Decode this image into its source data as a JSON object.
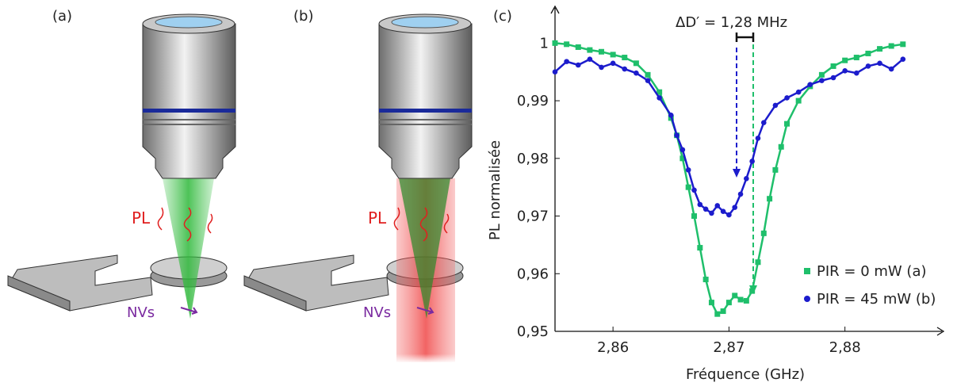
{
  "panels": [
    {
      "label": "(a)",
      "pl": "PL",
      "nv": "NVs"
    },
    {
      "label": "(b)",
      "pl": "PL",
      "nv": "NVs"
    }
  ],
  "chart_data": {
    "type": "scatter",
    "panel_label": "(c)",
    "annotation": "ΔD′ = 1,28 MHz",
    "x_label": "Fréquence (GHz)",
    "y_label": "PL normalisée",
    "xlim": [
      2.855,
      2.8885
    ],
    "ylim": [
      0.95,
      1.005
    ],
    "xticks": [
      {
        "value": 2.86,
        "label": "2,86"
      },
      {
        "value": 2.87,
        "label": "2,87"
      },
      {
        "value": 2.88,
        "label": "2,88"
      }
    ],
    "yticks": [
      {
        "value": 0.95,
        "label": "0,95"
      },
      {
        "value": 0.96,
        "label": "0,96"
      },
      {
        "value": 0.97,
        "label": "0,97"
      },
      {
        "value": 0.98,
        "label": "0,98"
      },
      {
        "value": 0.99,
        "label": "0,99"
      },
      1
    ],
    "series": [
      {
        "name": "PIR = 0 mW (a)",
        "color": "#1fbf6b",
        "marker": "square",
        "x": [
          2.855,
          2.856,
          2.857,
          2.858,
          2.859,
          2.86,
          2.861,
          2.862,
          2.863,
          2.864,
          2.865,
          2.8655,
          2.866,
          2.8665,
          2.867,
          2.8675,
          2.868,
          2.8685,
          2.869,
          2.8695,
          2.87,
          2.8705,
          2.871,
          2.8715,
          2.872,
          2.8725,
          2.873,
          2.8735,
          2.874,
          2.8745,
          2.875,
          2.876,
          2.877,
          2.878,
          2.879,
          2.88,
          2.881,
          2.882,
          2.883,
          2.884,
          2.885
        ],
        "values": [
          1.0,
          0.9998,
          0.9993,
          0.9988,
          0.9985,
          0.998,
          0.9975,
          0.9965,
          0.9945,
          0.9915,
          0.987,
          0.984,
          0.98,
          0.975,
          0.97,
          0.9645,
          0.959,
          0.955,
          0.953,
          0.9535,
          0.955,
          0.9562,
          0.9555,
          0.9553,
          0.957,
          0.962,
          0.967,
          0.973,
          0.978,
          0.982,
          0.986,
          0.99,
          0.9925,
          0.9945,
          0.996,
          0.997,
          0.9975,
          0.9982,
          0.999,
          0.9995,
          0.9998
        ]
      },
      {
        "name": "PIR = 45 mW (b)",
        "color": "#1c1ccc",
        "marker": "circle",
        "x": [
          2.855,
          2.856,
          2.857,
          2.858,
          2.859,
          2.86,
          2.861,
          2.862,
          2.863,
          2.864,
          2.865,
          2.8655,
          2.866,
          2.8665,
          2.867,
          2.8675,
          2.868,
          2.8685,
          2.869,
          2.8695,
          2.87,
          2.8705,
          2.871,
          2.8715,
          2.872,
          2.8725,
          2.873,
          2.874,
          2.875,
          2.876,
          2.877,
          2.878,
          2.879,
          2.88,
          2.881,
          2.882,
          2.883,
          2.884,
          2.885
        ],
        "values": [
          0.995,
          0.9968,
          0.9962,
          0.9972,
          0.9958,
          0.9965,
          0.9955,
          0.9948,
          0.9935,
          0.9905,
          0.9875,
          0.984,
          0.9815,
          0.978,
          0.9745,
          0.972,
          0.9712,
          0.9705,
          0.9718,
          0.9708,
          0.9702,
          0.9715,
          0.9738,
          0.9765,
          0.9795,
          0.9835,
          0.9862,
          0.9892,
          0.9905,
          0.9915,
          0.9928,
          0.9935,
          0.994,
          0.9952,
          0.9948,
          0.996,
          0.9965,
          0.9955,
          0.9972
        ]
      }
    ]
  }
}
